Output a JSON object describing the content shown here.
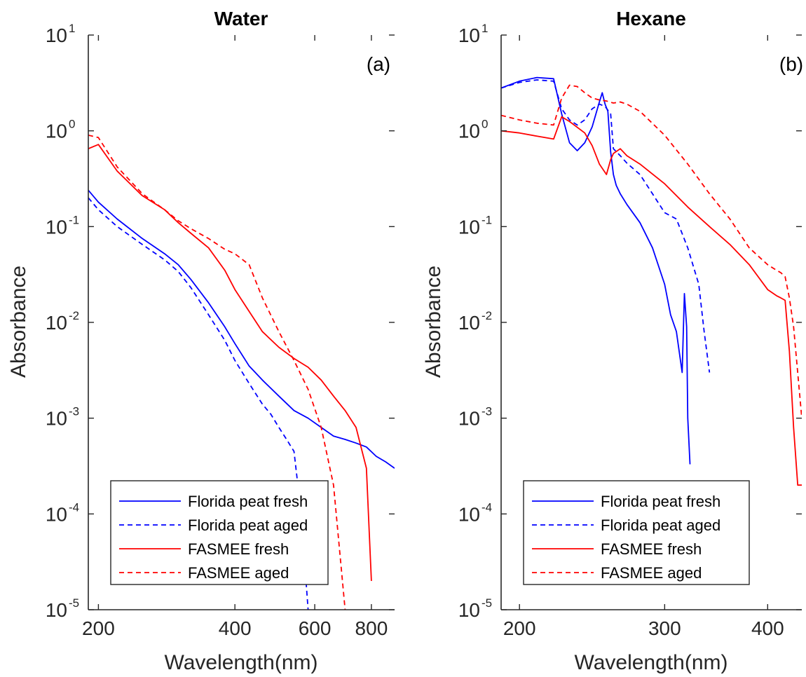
{
  "chart_data": [
    {
      "type": "line",
      "title": "Water",
      "panel_label": "(a)",
      "xlabel": "Wavelength(nm)",
      "ylabel": "Absorbance",
      "xscale": "log",
      "yscale": "log",
      "xlim": [
        190,
        900
      ],
      "ylim": [
        1e-05,
        10
      ],
      "xticks": [
        200,
        400,
        600,
        800
      ],
      "xtick_labels": [
        "200",
        "400",
        "600",
        "800"
      ],
      "yticks": [
        1e-05,
        0.0001,
        0.001,
        0.01,
        0.1,
        1,
        10
      ],
      "ytick_labels": [
        {
          "base": "10",
          "exp": "-5"
        },
        {
          "base": "10",
          "exp": "-4"
        },
        {
          "base": "10",
          "exp": "-3"
        },
        {
          "base": "10",
          "exp": "-2"
        },
        {
          "base": "10",
          "exp": "-1"
        },
        {
          "base": "10",
          "exp": "0"
        },
        {
          "base": "10",
          "exp": "1"
        }
      ],
      "legend_position": "bottom-left",
      "series": [
        {
          "name": "Florida peat fresh",
          "color": "#0000ff",
          "style": "solid",
          "x": [
            190,
            200,
            220,
            250,
            280,
            300,
            320,
            350,
            380,
            400,
            430,
            460,
            500,
            540,
            580,
            620,
            660,
            700,
            740,
            780,
            820,
            860,
            900
          ],
          "y": [
            0.24,
            0.18,
            0.12,
            0.075,
            0.052,
            0.04,
            0.028,
            0.016,
            0.009,
            0.006,
            0.0035,
            0.0025,
            0.0017,
            0.0012,
            0.001,
            0.0008,
            0.00065,
            0.0006,
            0.00055,
            0.0005,
            0.0004,
            0.00035,
            0.0003
          ]
        },
        {
          "name": "Florida peat aged",
          "color": "#0000ff",
          "style": "dashed",
          "x": [
            190,
            200,
            220,
            250,
            280,
            300,
            320,
            350,
            380,
            400,
            430,
            460,
            480,
            500,
            520,
            540,
            560,
            580
          ],
          "y": [
            0.2,
            0.15,
            0.1,
            0.065,
            0.045,
            0.034,
            0.023,
            0.012,
            0.0065,
            0.004,
            0.0023,
            0.0014,
            0.0011,
            0.0008,
            0.0006,
            0.00045,
            0.0001,
            1e-05
          ]
        },
        {
          "name": "FASMEE fresh",
          "color": "#ff0000",
          "style": "solid",
          "x": [
            190,
            200,
            220,
            250,
            280,
            300,
            320,
            350,
            380,
            400,
            430,
            460,
            500,
            540,
            580,
            620,
            660,
            700,
            740,
            780,
            800
          ],
          "y": [
            0.65,
            0.72,
            0.38,
            0.21,
            0.15,
            0.11,
            0.085,
            0.06,
            0.035,
            0.022,
            0.013,
            0.008,
            0.0055,
            0.0042,
            0.0034,
            0.0025,
            0.0017,
            0.0012,
            0.0008,
            0.0003,
            2e-05
          ]
        },
        {
          "name": "FASMEE aged",
          "color": "#ff0000",
          "style": "dashed",
          "x": [
            190,
            200,
            220,
            250,
            280,
            300,
            320,
            350,
            380,
            400,
            430,
            460,
            500,
            540,
            580,
            620,
            660,
            700
          ],
          "y": [
            0.9,
            0.85,
            0.42,
            0.22,
            0.15,
            0.115,
            0.095,
            0.075,
            0.058,
            0.052,
            0.04,
            0.018,
            0.008,
            0.004,
            0.002,
            0.0008,
            0.0002,
            1e-05
          ]
        }
      ]
    },
    {
      "type": "line",
      "title": "Hexane",
      "panel_label": "(b)",
      "xlabel": "Wavelength(nm)",
      "ylabel": "Absorbance",
      "xscale": "log",
      "yscale": "log",
      "xlim": [
        190,
        440
      ],
      "ylim": [
        1e-05,
        10
      ],
      "xticks": [
        200,
        300,
        400
      ],
      "xtick_labels": [
        "200",
        "300",
        "400"
      ],
      "yticks": [
        1e-05,
        0.0001,
        0.001,
        0.01,
        0.1,
        1,
        10
      ],
      "ytick_labels": [
        {
          "base": "10",
          "exp": "-5"
        },
        {
          "base": "10",
          "exp": "-4"
        },
        {
          "base": "10",
          "exp": "-3"
        },
        {
          "base": "10",
          "exp": "-2"
        },
        {
          "base": "10",
          "exp": "-1"
        },
        {
          "base": "10",
          "exp": "0"
        },
        {
          "base": "10",
          "exp": "1"
        }
      ],
      "legend_position": "bottom-left",
      "series": [
        {
          "name": "Florida peat fresh",
          "color": "#0000ff",
          "style": "solid",
          "x": [
            190,
            200,
            210,
            220,
            225,
            230,
            235,
            240,
            245,
            250,
            252,
            254,
            256,
            258,
            260,
            262,
            265,
            270,
            280,
            290,
            300,
            305,
            310,
            315,
            317,
            319,
            320,
            322
          ],
          "y": [
            2.8,
            3.3,
            3.6,
            3.5,
            1.5,
            0.75,
            0.62,
            0.75,
            1.1,
            2.0,
            2.5,
            1.9,
            1.6,
            0.6,
            0.35,
            0.27,
            0.22,
            0.17,
            0.11,
            0.06,
            0.025,
            0.012,
            0.008,
            0.003,
            0.02,
            0.009,
            0.001,
            0.00033
          ]
        },
        {
          "name": "Florida peat aged",
          "color": "#0000ff",
          "style": "dashed",
          "x": [
            190,
            200,
            210,
            220,
            225,
            230,
            235,
            240,
            245,
            250,
            254,
            258,
            260,
            265,
            270,
            280,
            290,
            300,
            310,
            320,
            330,
            335,
            340
          ],
          "y": [
            2.8,
            3.2,
            3.4,
            3.3,
            1.7,
            1.3,
            1.15,
            1.3,
            1.7,
            1.9,
            1.8,
            1.5,
            0.65,
            0.55,
            0.46,
            0.35,
            0.22,
            0.14,
            0.12,
            0.06,
            0.025,
            0.008,
            0.003
          ]
        },
        {
          "name": "FASMEE fresh",
          "color": "#ff0000",
          "style": "solid",
          "x": [
            190,
            200,
            210,
            220,
            225,
            230,
            240,
            245,
            250,
            255,
            258,
            260,
            265,
            270,
            280,
            300,
            320,
            340,
            360,
            380,
            400,
            410,
            415,
            420,
            425,
            430,
            435,
            440
          ],
          "y": [
            1.0,
            0.95,
            0.88,
            0.82,
            1.4,
            1.25,
            0.95,
            0.7,
            0.45,
            0.35,
            0.5,
            0.58,
            0.65,
            0.55,
            0.45,
            0.28,
            0.16,
            0.1,
            0.065,
            0.04,
            0.022,
            0.019,
            0.018,
            0.017,
            0.005,
            0.0008,
            0.0002,
            0.0002
          ]
        },
        {
          "name": "FASMEE aged",
          "color": "#ff0000",
          "style": "dashed",
          "x": [
            190,
            200,
            210,
            220,
            225,
            230,
            235,
            240,
            245,
            250,
            255,
            260,
            265,
            270,
            280,
            300,
            320,
            340,
            360,
            380,
            400,
            410,
            415,
            420,
            425,
            430,
            440
          ],
          "y": [
            1.45,
            1.3,
            1.2,
            1.15,
            2.2,
            3.0,
            2.9,
            2.5,
            2.2,
            2.1,
            2.05,
            1.95,
            2.0,
            1.9,
            1.6,
            0.9,
            0.45,
            0.22,
            0.12,
            0.06,
            0.04,
            0.035,
            0.033,
            0.03,
            0.018,
            0.009,
            0.001
          ]
        }
      ]
    }
  ]
}
